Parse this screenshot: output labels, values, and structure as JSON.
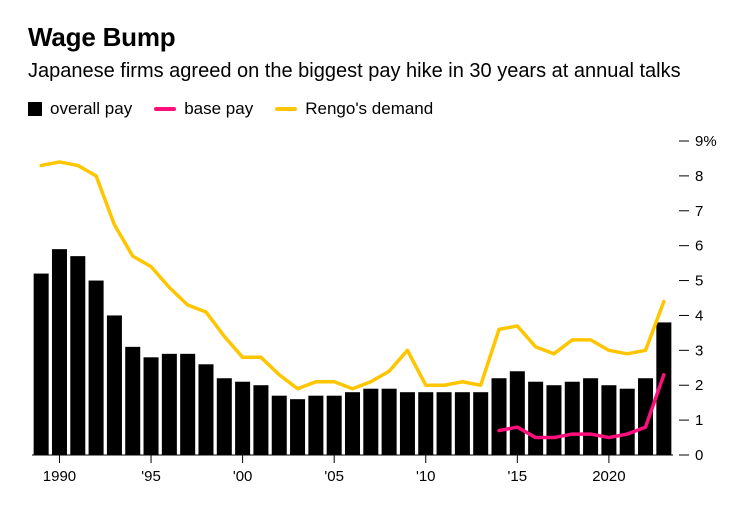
{
  "title": "Wage Bump",
  "subtitle": "Japanese firms agreed on the biggest pay hike in 30 years at annual talks",
  "legend": {
    "overall": "overall pay",
    "base": "base pay",
    "rengo": "Rengo's demand"
  },
  "colors": {
    "bar": "#000000",
    "base_line": "#ff0f7b",
    "rengo_line": "#ffc600",
    "text": "#000000",
    "tick": "#000000",
    "background": "#ffffff"
  },
  "style": {
    "title_fontsize": 26,
    "subtitle_fontsize": 20,
    "legend_fontsize": 17,
    "axis_fontsize": 15,
    "line_width": 3.5,
    "bar_gap_ratio": 0.18
  },
  "chart": {
    "type": "bar+line",
    "ylim": [
      0,
      9
    ],
    "yticks": [
      0,
      1,
      2,
      3,
      4,
      5,
      6,
      7,
      8
    ],
    "ytick_top_label": "9%",
    "years": [
      1989,
      1990,
      1991,
      1992,
      1993,
      1994,
      1995,
      1996,
      1997,
      1998,
      1999,
      2000,
      2001,
      2002,
      2003,
      2004,
      2005,
      2006,
      2007,
      2008,
      2009,
      2010,
      2011,
      2012,
      2013,
      2014,
      2015,
      2016,
      2017,
      2018,
      2019,
      2020,
      2021,
      2022,
      2023
    ],
    "xticks": [
      1990,
      1995,
      2000,
      2005,
      2010,
      2015,
      2020
    ],
    "xtick_labels": {
      "1990": "1990",
      "1995": "'95",
      "2000": "'00",
      "2005": "'05",
      "2010": "'10",
      "2015": "'15",
      "2020": "2020"
    },
    "overall_pay": [
      5.2,
      5.9,
      5.7,
      5.0,
      4.0,
      3.1,
      2.8,
      2.9,
      2.9,
      2.6,
      2.2,
      2.1,
      2.0,
      1.7,
      1.6,
      1.7,
      1.7,
      1.8,
      1.9,
      1.9,
      1.8,
      1.8,
      1.8,
      1.8,
      1.8,
      2.2,
      2.4,
      2.1,
      2.0,
      2.1,
      2.2,
      2.0,
      1.9,
      2.2,
      3.8
    ],
    "rengo_demand": [
      8.3,
      8.4,
      8.3,
      8.0,
      6.6,
      5.7,
      5.4,
      4.8,
      4.3,
      4.1,
      3.4,
      2.8,
      2.8,
      2.3,
      1.9,
      2.1,
      2.1,
      1.9,
      2.1,
      2.4,
      3.0,
      2.0,
      2.0,
      2.1,
      2.0,
      3.6,
      3.7,
      3.1,
      2.9,
      3.3,
      3.3,
      3.0,
      2.9,
      3.0,
      4.4
    ],
    "base_pay_start_year": 2014,
    "base_pay": [
      0.7,
      0.8,
      0.5,
      0.5,
      0.6,
      0.6,
      0.5,
      0.6,
      0.8,
      2.3
    ]
  }
}
